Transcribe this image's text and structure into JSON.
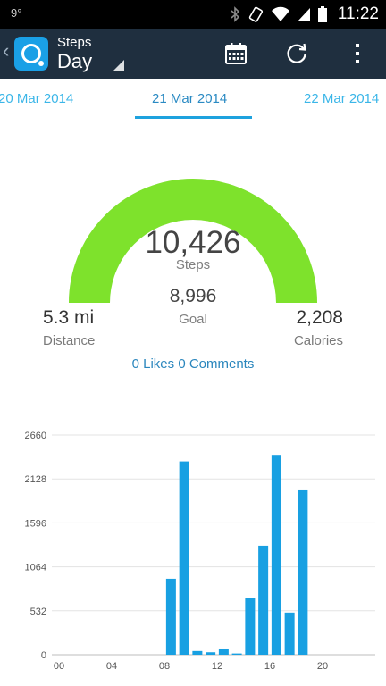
{
  "status_bar": {
    "left_text": "9°",
    "time": "11:22",
    "icons": [
      "bluetooth-icon",
      "vibrate-icon",
      "wifi-icon",
      "signal-icon",
      "battery-icon"
    ]
  },
  "app_bar": {
    "title": "Steps",
    "subtitle": "Day",
    "actions": [
      "calendar-icon",
      "sync-icon",
      "overflow-menu-icon"
    ]
  },
  "date_tabs": {
    "previous": "20 Mar 2014",
    "current": "21 Mar 2014",
    "next": "22 Mar 2014"
  },
  "summary": {
    "steps_value": "10,426",
    "steps_label": "Steps",
    "goal_value": "8,996",
    "goal_label": "Goal",
    "distance_value": "5.3 mi",
    "distance_label": "Distance",
    "calories_value": "2,208",
    "calories_label": "Calories",
    "progress_fraction": 1.0,
    "social_text": "0 Likes 0 Comments"
  },
  "colors": {
    "gauge": "#7ee22c",
    "accent": "#1ea2de",
    "bar": "#18a0e2",
    "app_bar": "#1f2f3f"
  },
  "chart_data": {
    "type": "bar",
    "title": "",
    "xlabel": "",
    "ylabel": "",
    "x_tick_labels": [
      "00",
      "04",
      "08",
      "12",
      "16",
      "20"
    ],
    "y_ticks": [
      0,
      532,
      1064,
      1596,
      2128,
      2660
    ],
    "ylim": [
      0,
      2660
    ],
    "grid": true,
    "bars": [
      {
        "hour": 8,
        "value": 920
      },
      {
        "hour": 9,
        "value": 2340
      },
      {
        "hour": 10,
        "value": 45
      },
      {
        "hour": 11,
        "value": 30
      },
      {
        "hour": 12,
        "value": 65
      },
      {
        "hour": 13,
        "value": 15
      },
      {
        "hour": 14,
        "value": 690
      },
      {
        "hour": 15,
        "value": 1320
      },
      {
        "hour": 16,
        "value": 2420
      },
      {
        "hour": 17,
        "value": 510
      },
      {
        "hour": 18,
        "value": 1990
      }
    ]
  }
}
